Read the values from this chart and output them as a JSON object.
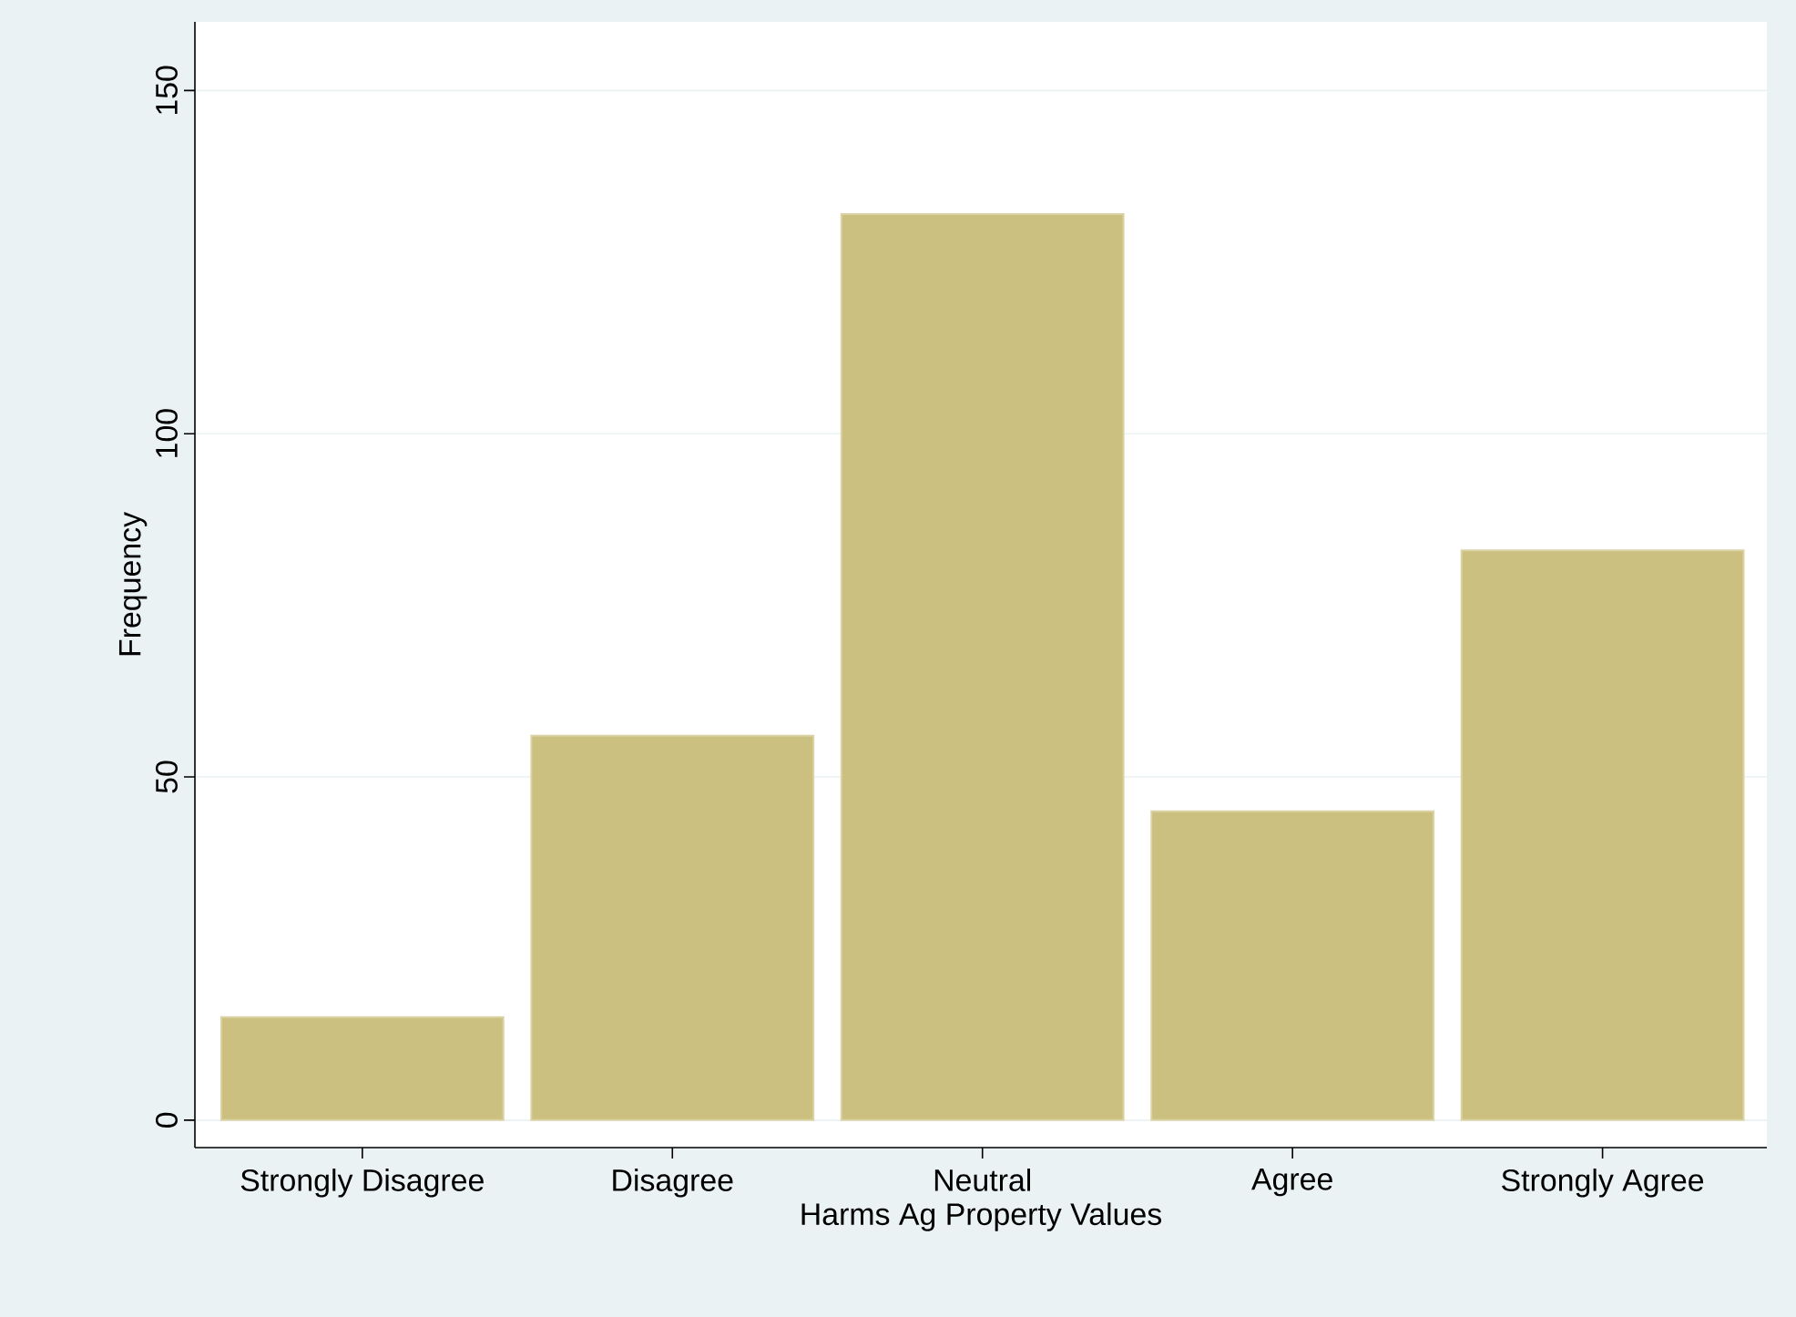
{
  "chart_data": {
    "type": "bar",
    "xlabel": "Harms Ag Property Values",
    "ylabel": "Frequency",
    "categories": [
      "Strongly Disagree",
      "Disagree",
      "Neutral",
      "Agree",
      "Strongly Agree"
    ],
    "values": [
      15,
      56,
      132,
      45,
      83
    ],
    "color": "#cbc07f",
    "ylim": [
      -4,
      160
    ],
    "yticks": [
      0,
      50,
      100,
      150
    ],
    "grid": "y"
  }
}
